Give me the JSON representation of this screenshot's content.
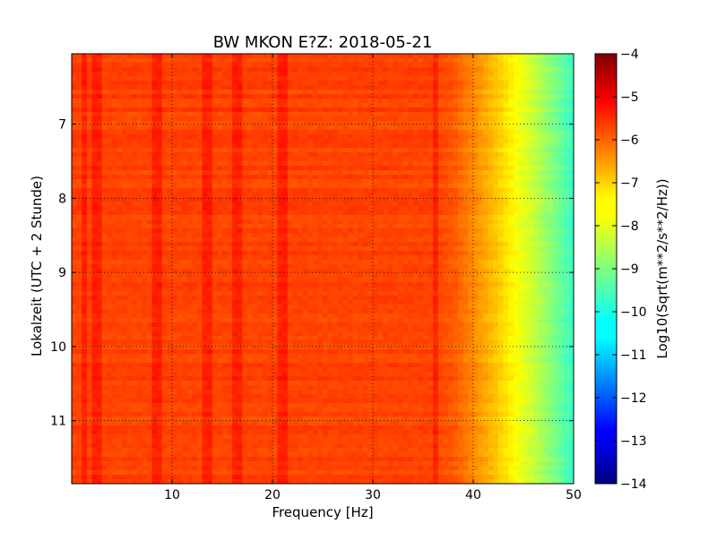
{
  "chart_data": {
    "type": "heatmap",
    "title": "BW MKON E?Z: 2018-05-21",
    "xlabel": "Frequency [Hz]",
    "ylabel": "Lokalzeit (UTC + 2 Stunde)",
    "xlim": [
      0,
      50
    ],
    "ylim": [
      11.85,
      6.05
    ],
    "x_ticks": [
      10,
      20,
      30,
      40,
      50
    ],
    "y_ticks": [
      7,
      8,
      9,
      10,
      11
    ],
    "grid": true,
    "colorbar": {
      "label": "Log10(Sqrt(m**2/s**2/Hz))",
      "range": [
        -14,
        -4
      ],
      "ticks": [
        -4,
        -5,
        -6,
        -7,
        -8,
        -9,
        -10,
        -11,
        -12,
        -13,
        -14
      ],
      "colormap": "jet"
    },
    "level_profile": {
      "description_points_hz": [
        0,
        36,
        38,
        40,
        42,
        44,
        46,
        48,
        50
      ],
      "log10_amplitude": [
        -5.9,
        -5.9,
        -6.1,
        -6.6,
        -7.1,
        -7.7,
        -8.3,
        -9.0,
        -9.7
      ]
    },
    "line_features_hz": [
      1.2,
      2.5,
      8.5,
      13.5,
      16.5,
      21.0,
      36.3
    ]
  },
  "colors": {
    "axis": "#000000",
    "grid": "#000000"
  }
}
